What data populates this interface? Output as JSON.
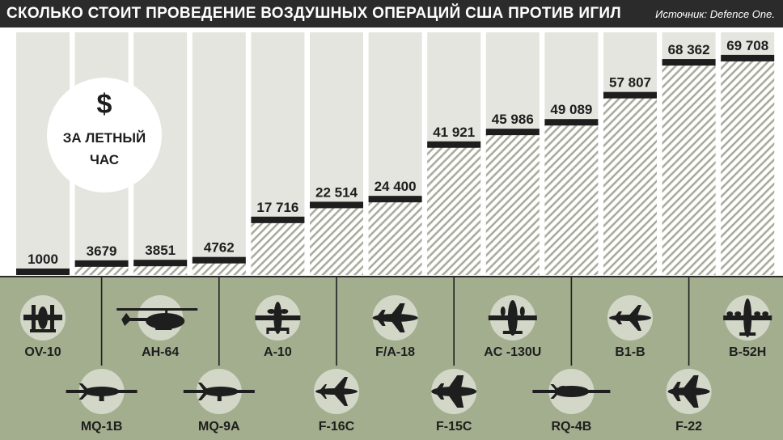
{
  "header": {
    "title": "СКОЛЬКО СТОИТ ПРОВЕДЕНИЕ ВОЗДУШНЫХ ОПЕРАЦИЙ США ПРОТИВ ИГИЛ",
    "source": "Источник: Defence One."
  },
  "badge": {
    "symbol": "$",
    "caption": "ЗА ЛЕТНЫЙ ЧАС"
  },
  "colors": {
    "header_bg": "#2b2b2b",
    "column_bg": "#e3e5de",
    "hatch": "#a9ac9d",
    "bottom_panel": "#a2ae8e",
    "icon_circle": "#d2d7c8",
    "silhouette": "#1e1e1e"
  },
  "chart_data": {
    "type": "bar",
    "unit": "$ за летный час",
    "categories": [
      "OV-10",
      "MQ-1B",
      "AH-64",
      "MQ-9A",
      "A-10",
      "F-16C",
      "F/A-18",
      "F-15C",
      "AC -130U",
      "RQ-4B",
      "B1-B",
      "F-22",
      "B-52H"
    ],
    "values": [
      1000,
      3679,
      3851,
      4762,
      17716,
      22514,
      24400,
      41921,
      45986,
      49089,
      57807,
      68362,
      69708
    ],
    "value_labels": [
      "1000",
      "3679",
      "3851",
      "4762",
      "17 716",
      "22 514",
      "24 400",
      "41 921",
      "45 986",
      "49 089",
      "57 807",
      "68 362",
      "69 708"
    ],
    "label_row": [
      "top",
      "bottom",
      "top",
      "bottom",
      "top",
      "bottom",
      "top",
      "bottom",
      "top",
      "bottom",
      "top",
      "bottom",
      "top"
    ],
    "icons": [
      "ov10-icon",
      "mq1b-icon",
      "ah64-icon",
      "mq9a-icon",
      "a10-icon",
      "f16c-icon",
      "fa18-icon",
      "f15c-icon",
      "ac130u-icon",
      "rq4b-icon",
      "b1b-icon",
      "f22-icon",
      "b52h-icon"
    ],
    "ylim": [
      0,
      78000
    ],
    "grid": false
  }
}
